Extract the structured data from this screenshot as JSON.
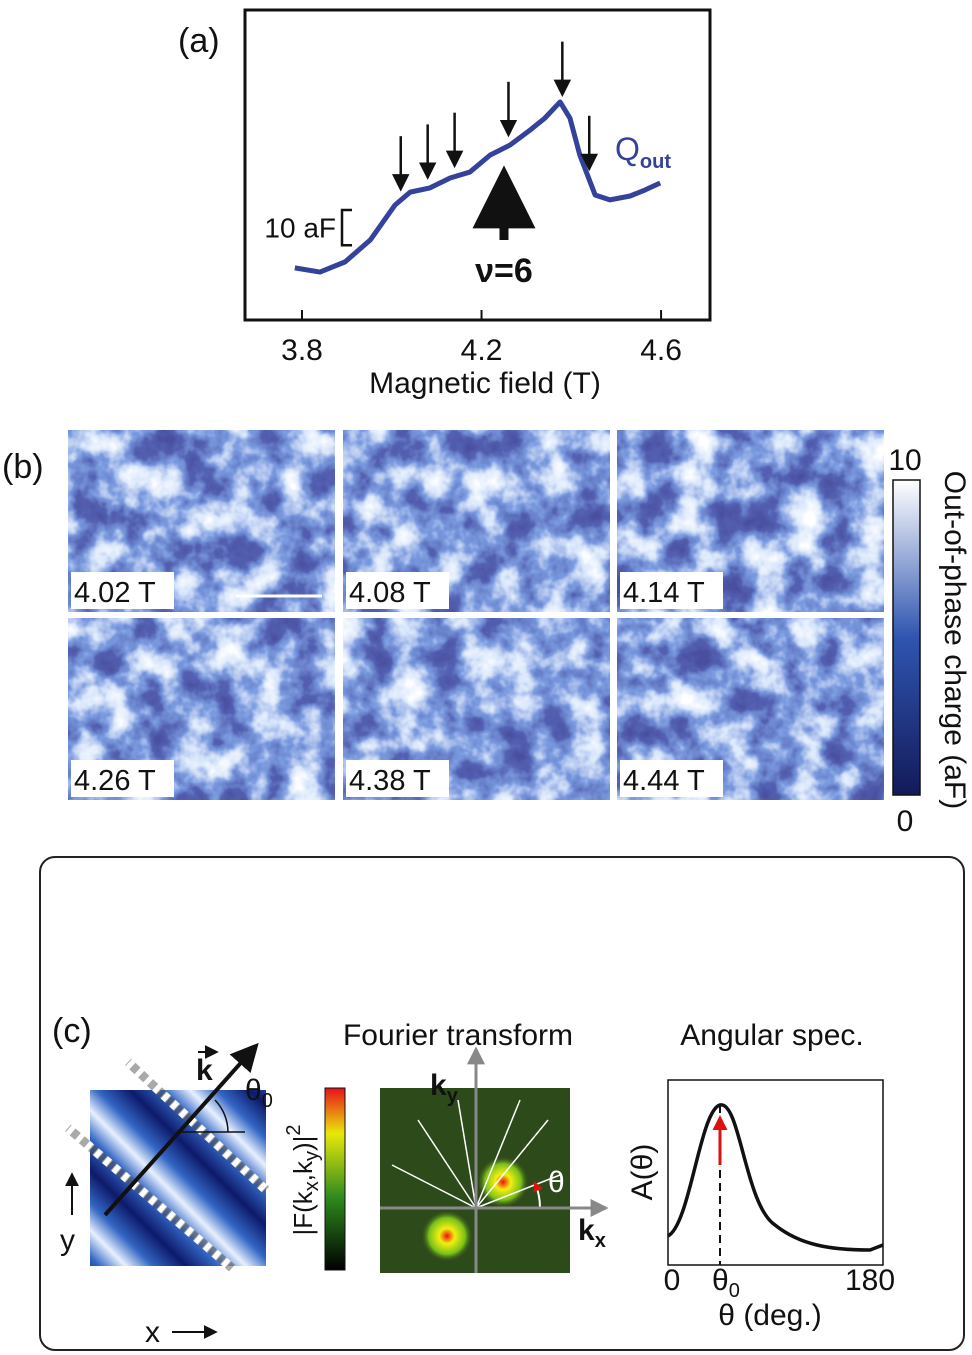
{
  "chart_data": {
    "type": "line",
    "panel_label": "(a)",
    "xlabel": "Magnetic field (T)",
    "x": [
      3.784,
      3.84,
      3.896,
      3.952,
      4.007,
      4.041,
      4.085,
      4.13,
      4.174,
      4.219,
      4.264,
      4.308,
      4.341,
      4.375,
      4.397,
      4.419,
      4.453,
      4.486,
      4.531,
      4.564,
      4.598
    ],
    "series": [
      {
        "name": "Q",
        "name_subscript": "out",
        "color": "#34429c",
        "values": [
          14.8,
          13.6,
          16.5,
          22.7,
          32.6,
          36.3,
          37.5,
          40.3,
          42.0,
          46.8,
          49.7,
          53.9,
          57.3,
          61.9,
          57.3,
          46.8,
          35.5,
          34.1,
          35.2,
          36.9,
          38.9
        ]
      }
    ],
    "xlim": [
      3.673,
      4.709
    ],
    "xticks": [
      3.8,
      4.2,
      4.6
    ],
    "ylim": [
      0,
      88
    ],
    "scale_bar": {
      "label": "10 aF",
      "value": 10
    },
    "annotation": {
      "text": "ν=6",
      "x": 4.25
    },
    "arrows_x": [
      4.02,
      4.08,
      4.14,
      4.26,
      4.38,
      4.44
    ]
  },
  "panel_b": {
    "label": "(b)",
    "images": [
      "4.02 T",
      "4.08 T",
      "4.14 T",
      "4.26 T",
      "4.38 T",
      "4.44 T"
    ],
    "colorbar": {
      "label": "Out-of-phase charge (aF)",
      "lim": [
        0,
        10
      ],
      "ticks": [
        10,
        0
      ]
    }
  },
  "panel_c": {
    "label": "(c)",
    "k_label": "k",
    "theta0": [
      "θ",
      "0"
    ],
    "y_label": "y",
    "x_label": "x",
    "ft_title": "Fourier transform",
    "ft_colorbar_label": [
      "|F(k",
      "x",
      ",k",
      "y",
      ")|",
      "2"
    ],
    "ky": [
      "k",
      "y"
    ],
    "kx": [
      "k",
      "x"
    ],
    "theta": "θ",
    "as_title": "Angular spec.",
    "as_ylabel": "A(θ)",
    "as_tick_0": "0",
    "as_tick_theta0": [
      "θ",
      "0"
    ],
    "as_tick_180": "180",
    "as_xlabel": "θ (deg.)"
  }
}
